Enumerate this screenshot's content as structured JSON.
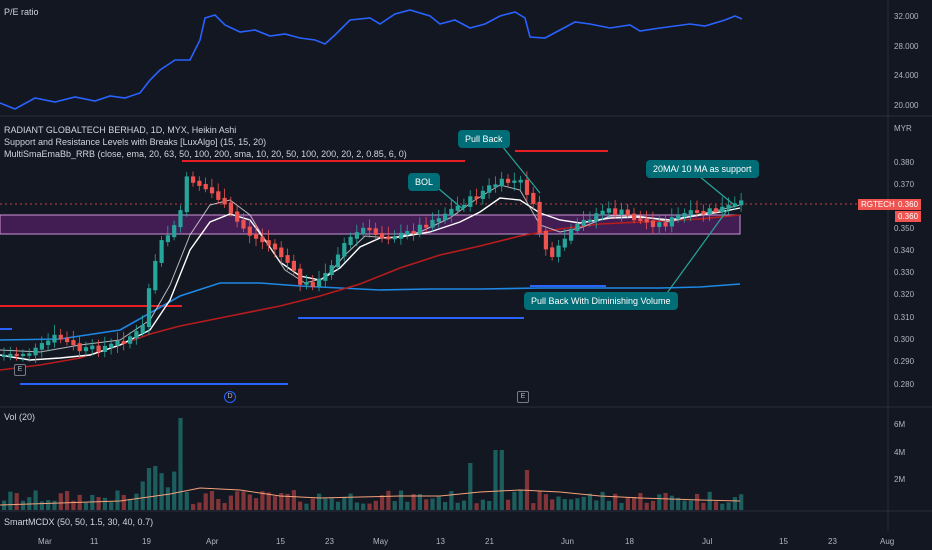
{
  "pe_panel": {
    "title": "P/E ratio",
    "ticks": [
      "32.000",
      "28.000",
      "24.000",
      "20.000"
    ]
  },
  "main_panel": {
    "title": "RADIANT GLOBALTECH BERHAD, 1D, MYX, Heikin Ashi",
    "indicator1": "Support and Resistance Levels with Breaks [LuxAlgo] (15, 15, 20)",
    "indicator2": "MultiSmaEmaBb_RRB (close, ema, 20, 63, 50, 100, 200, sma, 10, 20, 50, 100, 200, 20, 2, 0.85, 6, 0)",
    "currency": "MYR",
    "ticks": [
      "0.380",
      "0.370",
      "0.360",
      "0.350",
      "0.340",
      "0.330",
      "0.320",
      "0.310",
      "0.300",
      "0.290",
      "0.280"
    ],
    "symbol_tag": "RGTECH",
    "price_tag_1": "0.360",
    "price_tag_2": "0.360"
  },
  "annotations": {
    "pull_back": "Pull Back",
    "bol": "BOL",
    "support": "20MA/ 10 MA as support",
    "diminishing": "Pull Back With Diminishing Volume"
  },
  "markers": {
    "e1": "E",
    "d": "D",
    "e2": "E"
  },
  "volume_panel": {
    "title": "Vol (20)",
    "ticks": [
      "6M",
      "4M",
      "2M"
    ]
  },
  "smart_panel": {
    "title": "SmartMCDX (50, 50, 1.5, 30, 40, 0.7)"
  },
  "x_axis": [
    "Mar",
    "11",
    "19",
    "Apr",
    "15",
    "23",
    "May",
    "13",
    "21",
    "Jun",
    "18",
    "Jul",
    "15",
    "23",
    "Aug"
  ],
  "colors": {
    "bull": "#26a69a",
    "bear": "#ef5350",
    "pe_line": "#2962ff",
    "zone": "#9c27b0"
  }
}
